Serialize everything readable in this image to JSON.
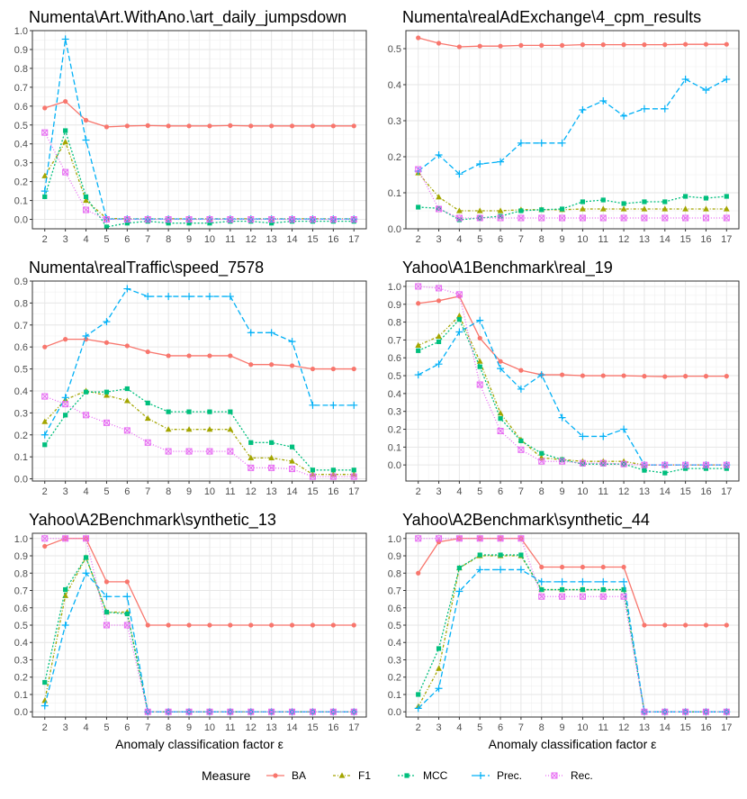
{
  "legend": {
    "title": "Measure",
    "entries": [
      "BA",
      "F1",
      "MCC",
      "Prec.",
      "Rec."
    ]
  },
  "colors": {
    "BA": "#F8766D",
    "F1": "#A3A500",
    "MCC": "#00BF7D",
    "Prec.": "#00B0F6",
    "Rec.": "#E76BF3"
  },
  "chart_data": [
    {
      "type": "line",
      "title": "Numenta\\Art.WithAno.\\art_daily_jumpsdown",
      "xlabel": "",
      "x": [
        2,
        3,
        4,
        5,
        6,
        7,
        8,
        9,
        10,
        11,
        12,
        13,
        14,
        15,
        16,
        17
      ],
      "ylim": [
        -0.05,
        1.0
      ],
      "yticks": [
        0.0,
        0.1,
        0.2,
        0.3,
        0.4,
        0.5,
        0.6,
        0.7,
        0.8,
        0.9,
        1.0
      ],
      "series": [
        {
          "name": "BA",
          "values": [
            0.59,
            0.625,
            0.525,
            0.49,
            0.495,
            0.497,
            0.495,
            0.495,
            0.495,
            0.497,
            0.495,
            0.495,
            0.495,
            0.495,
            0.495,
            0.495
          ]
        },
        {
          "name": "F1",
          "values": [
            0.23,
            0.41,
            0.1,
            0.005,
            0.003,
            0.003,
            0.003,
            0.003,
            0.003,
            0.003,
            0.003,
            0.003,
            0.003,
            0.003,
            0.003,
            0.003
          ]
        },
        {
          "name": "MCC",
          "values": [
            0.12,
            0.47,
            0.12,
            -0.04,
            -0.02,
            -0.01,
            -0.02,
            -0.02,
            -0.02,
            -0.01,
            -0.01,
            -0.02,
            -0.01,
            -0.01,
            -0.01,
            -0.01
          ]
        },
        {
          "name": "Prec.",
          "values": [
            0.15,
            0.955,
            0.42,
            0.002,
            0.002,
            0.002,
            0.002,
            0.002,
            0.002,
            0.002,
            0.002,
            0.002,
            0.002,
            0.002,
            0.002,
            0.002
          ]
        },
        {
          "name": "Rec.",
          "values": [
            0.46,
            0.25,
            0.05,
            0.0,
            0.0,
            0.0,
            0.0,
            0.0,
            0.0,
            0.0,
            0.0,
            0.0,
            0.0,
            0.0,
            0.0,
            0.0
          ]
        }
      ]
    },
    {
      "type": "line",
      "title": "Numenta\\realAdExchange\\4_cpm_results",
      "xlabel": "",
      "x": [
        2,
        3,
        4,
        5,
        6,
        7,
        8,
        9,
        10,
        11,
        12,
        13,
        14,
        15,
        16,
        17
      ],
      "ylim": [
        0.0,
        0.55
      ],
      "yticks": [
        0.0,
        0.1,
        0.2,
        0.3,
        0.4,
        0.5
      ],
      "series": [
        {
          "name": "BA",
          "values": [
            0.53,
            0.515,
            0.505,
            0.507,
            0.507,
            0.509,
            0.509,
            0.509,
            0.511,
            0.511,
            0.511,
            0.511,
            0.511,
            0.512,
            0.512,
            0.512
          ]
        },
        {
          "name": "F1",
          "values": [
            0.155,
            0.088,
            0.05,
            0.05,
            0.05,
            0.053,
            0.053,
            0.053,
            0.055,
            0.055,
            0.055,
            0.055,
            0.055,
            0.055,
            0.055,
            0.055
          ]
        },
        {
          "name": "MCC",
          "values": [
            0.06,
            0.057,
            0.025,
            0.03,
            0.035,
            0.05,
            0.053,
            0.055,
            0.075,
            0.08,
            0.07,
            0.075,
            0.075,
            0.09,
            0.085,
            0.09
          ]
        },
        {
          "name": "Prec.",
          "values": [
            0.16,
            0.205,
            0.152,
            0.18,
            0.186,
            0.238,
            0.238,
            0.238,
            0.33,
            0.355,
            0.313,
            0.333,
            0.333,
            0.415,
            0.385,
            0.415
          ]
        },
        {
          "name": "Rec.",
          "values": [
            0.165,
            0.055,
            0.03,
            0.03,
            0.03,
            0.03,
            0.03,
            0.03,
            0.03,
            0.03,
            0.03,
            0.03,
            0.03,
            0.03,
            0.03,
            0.03
          ]
        }
      ]
    },
    {
      "type": "line",
      "title": "Numenta\\realTraffic\\speed_7578",
      "xlabel": "",
      "x": [
        2,
        3,
        4,
        5,
        6,
        7,
        8,
        9,
        10,
        11,
        12,
        13,
        14,
        15,
        16,
        17
      ],
      "ylim": [
        -0.01,
        0.9
      ],
      "yticks": [
        0.0,
        0.1,
        0.2,
        0.3,
        0.4,
        0.5,
        0.6,
        0.7,
        0.8,
        0.9
      ],
      "series": [
        {
          "name": "BA",
          "values": [
            0.6,
            0.635,
            0.635,
            0.62,
            0.605,
            0.578,
            0.56,
            0.56,
            0.56,
            0.56,
            0.52,
            0.52,
            0.515,
            0.5,
            0.5,
            0.5
          ]
        },
        {
          "name": "F1",
          "values": [
            0.26,
            0.36,
            0.4,
            0.38,
            0.355,
            0.275,
            0.225,
            0.225,
            0.225,
            0.225,
            0.095,
            0.095,
            0.08,
            0.02,
            0.02,
            0.02
          ]
        },
        {
          "name": "MCC",
          "values": [
            0.155,
            0.29,
            0.395,
            0.395,
            0.41,
            0.345,
            0.305,
            0.305,
            0.305,
            0.305,
            0.165,
            0.165,
            0.145,
            0.04,
            0.04,
            0.04
          ]
        },
        {
          "name": "Prec.",
          "values": [
            0.2,
            0.37,
            0.65,
            0.715,
            0.865,
            0.83,
            0.83,
            0.83,
            0.83,
            0.83,
            0.665,
            0.665,
            0.625,
            0.335,
            0.335,
            0.335
          ]
        },
        {
          "name": "Rec.",
          "values": [
            0.375,
            0.34,
            0.29,
            0.255,
            0.22,
            0.165,
            0.125,
            0.125,
            0.125,
            0.125,
            0.05,
            0.05,
            0.045,
            0.01,
            0.01,
            0.01
          ]
        }
      ]
    },
    {
      "type": "line",
      "title": "Yahoo\\A1Benchmark\\real_19",
      "xlabel": "",
      "x": [
        2,
        3,
        4,
        5,
        6,
        7,
        8,
        9,
        10,
        11,
        12,
        13,
        14,
        15,
        16,
        17
      ],
      "ylim": [
        -0.09,
        1.03
      ],
      "yticks": [
        0.0,
        0.1,
        0.2,
        0.3,
        0.4,
        0.5,
        0.6,
        0.7,
        0.8,
        0.9,
        1.0
      ],
      "series": [
        {
          "name": "BA",
          "values": [
            0.905,
            0.92,
            0.945,
            0.71,
            0.58,
            0.53,
            0.505,
            0.505,
            0.5,
            0.5,
            0.5,
            0.497,
            0.495,
            0.497,
            0.497,
            0.497
          ]
        },
        {
          "name": "F1",
          "values": [
            0.67,
            0.72,
            0.835,
            0.58,
            0.29,
            0.14,
            0.04,
            0.03,
            0.02,
            0.02,
            0.02,
            0.0,
            0.0,
            0.0,
            0.0,
            0.0
          ]
        },
        {
          "name": "MCC",
          "values": [
            0.64,
            0.69,
            0.815,
            0.55,
            0.26,
            0.135,
            0.065,
            0.03,
            0.005,
            0.005,
            0.005,
            -0.03,
            -0.045,
            -0.02,
            -0.02,
            -0.02
          ]
        },
        {
          "name": "Prec.",
          "values": [
            0.505,
            0.565,
            0.745,
            0.81,
            0.54,
            0.425,
            0.505,
            0.265,
            0.16,
            0.16,
            0.2,
            0.0,
            0.0,
            0.0,
            0.0,
            0.0
          ]
        },
        {
          "name": "Rec.",
          "values": [
            1.0,
            0.99,
            0.955,
            0.45,
            0.19,
            0.085,
            0.02,
            0.02,
            0.01,
            0.01,
            0.005,
            0.0,
            0.0,
            0.0,
            0.0,
            0.0
          ]
        }
      ]
    },
    {
      "type": "line",
      "title": "Yahoo\\A2Benchmark\\synthetic_13",
      "xlabel": "Anomaly classification factor ε",
      "x": [
        2,
        3,
        4,
        5,
        6,
        7,
        8,
        9,
        10,
        11,
        12,
        13,
        14,
        15,
        16,
        17
      ],
      "ylim": [
        -0.03,
        1.03
      ],
      "yticks": [
        0.0,
        0.1,
        0.2,
        0.3,
        0.4,
        0.5,
        0.6,
        0.7,
        0.8,
        0.9,
        1.0
      ],
      "series": [
        {
          "name": "BA",
          "values": [
            0.955,
            1.0,
            1.0,
            0.75,
            0.75,
            0.5,
            0.5,
            0.5,
            0.5,
            0.5,
            0.5,
            0.5,
            0.5,
            0.5,
            0.5,
            0.5
          ]
        },
        {
          "name": "F1",
          "values": [
            0.065,
            0.67,
            0.89,
            0.575,
            0.575,
            0.0,
            0.0,
            0.0,
            0.0,
            0.0,
            0.0,
            0.0,
            0.0,
            0.0,
            0.0,
            0.0
          ]
        },
        {
          "name": "MCC",
          "values": [
            0.17,
            0.705,
            0.89,
            0.575,
            0.565,
            0.0,
            0.0,
            0.0,
            0.0,
            0.0,
            0.0,
            0.0,
            0.0,
            0.0,
            0.0,
            0.0
          ]
        },
        {
          "name": "Prec.",
          "values": [
            0.035,
            0.5,
            0.8,
            0.665,
            0.665,
            0.0,
            0.0,
            0.0,
            0.0,
            0.0,
            0.0,
            0.0,
            0.0,
            0.0,
            0.0,
            0.0
          ]
        },
        {
          "name": "Rec.",
          "values": [
            1.0,
            1.0,
            1.0,
            0.5,
            0.5,
            0.0,
            0.0,
            0.0,
            0.0,
            0.0,
            0.0,
            0.0,
            0.0,
            0.0,
            0.0,
            0.0
          ]
        }
      ]
    },
    {
      "type": "line",
      "title": "Yahoo\\A2Benchmark\\synthetic_44",
      "xlabel": "Anomaly classification factor ε",
      "x": [
        2,
        3,
        4,
        5,
        6,
        7,
        8,
        9,
        10,
        11,
        12,
        13,
        14,
        15,
        16,
        17
      ],
      "ylim": [
        -0.03,
        1.03
      ],
      "yticks": [
        0.0,
        0.1,
        0.2,
        0.3,
        0.4,
        0.5,
        0.6,
        0.7,
        0.8,
        0.9,
        1.0
      ],
      "series": [
        {
          "name": "BA",
          "values": [
            0.8,
            0.98,
            1.0,
            1.0,
            1.0,
            1.0,
            0.835,
            0.835,
            0.835,
            0.835,
            0.835,
            0.5,
            0.5,
            0.5,
            0.5,
            0.5
          ]
        },
        {
          "name": "F1",
          "values": [
            0.03,
            0.25,
            0.83,
            0.9,
            0.9,
            0.9,
            0.705,
            0.705,
            0.705,
            0.705,
            0.705,
            0.0,
            0.0,
            0.0,
            0.0,
            0.0
          ]
        },
        {
          "name": "MCC",
          "values": [
            0.1,
            0.365,
            0.83,
            0.905,
            0.905,
            0.905,
            0.705,
            0.705,
            0.705,
            0.705,
            0.705,
            0.0,
            0.0,
            0.0,
            0.0,
            0.0
          ]
        },
        {
          "name": "Prec.",
          "values": [
            0.02,
            0.135,
            0.695,
            0.82,
            0.82,
            0.82,
            0.75,
            0.75,
            0.75,
            0.75,
            0.75,
            0.0,
            0.0,
            0.0,
            0.0,
            0.0
          ]
        },
        {
          "name": "Rec.",
          "values": [
            1.0,
            1.0,
            1.0,
            1.0,
            1.0,
            1.0,
            0.665,
            0.665,
            0.665,
            0.665,
            0.665,
            0.0,
            0.0,
            0.0,
            0.0,
            0.0
          ]
        }
      ]
    }
  ]
}
